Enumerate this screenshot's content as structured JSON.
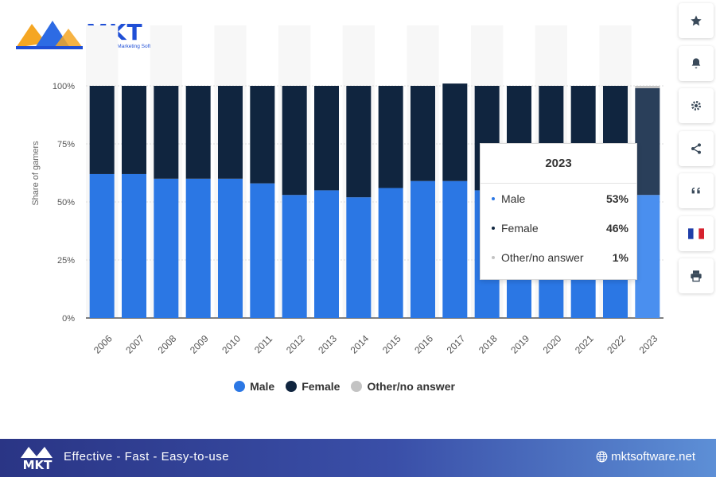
{
  "logo": {
    "text": "MKT",
    "subtitle": "Multichannel Marketing Software"
  },
  "colors": {
    "male": "#2b77e4",
    "male_highlight": "#4a8fef",
    "female": "#10253f",
    "female_highlight": "#2a3f5a",
    "other": "#c3c3c3",
    "brand": "#1f4fd6"
  },
  "chart_data": {
    "type": "bar",
    "stacked": true,
    "categories": [
      "2006",
      "2007",
      "2008",
      "2009",
      "2010",
      "2011",
      "2012",
      "2013",
      "2014",
      "2015",
      "2016",
      "2017",
      "2018",
      "2019",
      "2020",
      "2021",
      "2022",
      "2023"
    ],
    "series": [
      {
        "name": "Male",
        "values": [
          62,
          62,
          60,
          60,
          60,
          58,
          53,
          55,
          52,
          56,
          59,
          59,
          55,
          54,
          59,
          55,
          54,
          53
        ]
      },
      {
        "name": "Female",
        "values": [
          38,
          38,
          40,
          40,
          40,
          42,
          47,
          45,
          48,
          44,
          41,
          42,
          45,
          46,
          41,
          45,
          46,
          46
        ]
      },
      {
        "name": "Other/no answer",
        "values": [
          0,
          0,
          0,
          0,
          0,
          0,
          0,
          0,
          0,
          0,
          0,
          0,
          0,
          0,
          0,
          0,
          0,
          1
        ]
      }
    ],
    "ylabel": "Share of gamers",
    "xlabel": "",
    "yticks": [
      "0%",
      "25%",
      "50%",
      "75%",
      "100%"
    ],
    "ylim": [
      0,
      100
    ],
    "grid": true,
    "legend_position": "bottom",
    "highlighted_category": "2023"
  },
  "tooltip": {
    "title": "2023",
    "rows": [
      {
        "name": "Male",
        "value": "53%"
      },
      {
        "name": "Female",
        "value": "46%"
      },
      {
        "name": "Other/no answer",
        "value": "1%"
      }
    ]
  },
  "legend": [
    "Male",
    "Female",
    "Other/no answer"
  ],
  "toolbar": [
    "star-icon",
    "bell-icon",
    "gear-icon",
    "share-icon",
    "quote-icon",
    "flag-fr-icon",
    "print-icon"
  ],
  "footer": {
    "tagline": "Effective - Fast - Easy-to-use",
    "site": "mktsoftware.net"
  }
}
